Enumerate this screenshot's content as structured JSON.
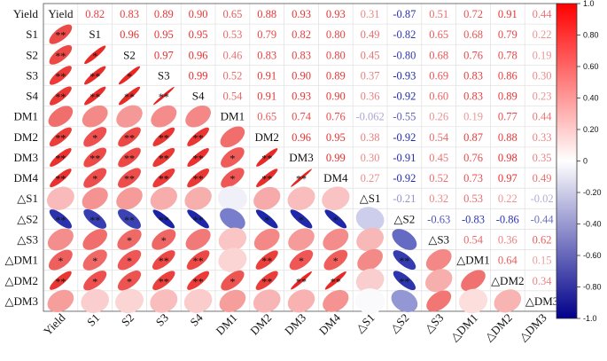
{
  "chart_data": {
    "type": "heatmap",
    "title": "",
    "variables": [
      "Yield",
      "S1",
      "S2",
      "S3",
      "S4",
      "DM1",
      "DM2",
      "DM3",
      "DM4",
      "△S1",
      "△S2",
      "△S3",
      "△DM1",
      "△DM2",
      "△DM3"
    ],
    "matrix": [
      [
        1,
        0.82,
        0.83,
        0.89,
        0.9,
        0.65,
        0.88,
        0.93,
        0.93,
        0.31,
        -0.87,
        0.51,
        0.72,
        0.91,
        0.44
      ],
      [
        0.82,
        1,
        0.96,
        0.95,
        0.95,
        0.53,
        0.79,
        0.82,
        0.8,
        0.49,
        -0.82,
        0.65,
        0.68,
        0.79,
        0.22
      ],
      [
        0.83,
        0.96,
        1,
        0.97,
        0.96,
        0.46,
        0.83,
        0.83,
        0.8,
        0.45,
        -0.8,
        0.68,
        0.76,
        0.78,
        0.19
      ],
      [
        0.89,
        0.95,
        0.97,
        1,
        0.99,
        0.52,
        0.91,
        0.9,
        0.89,
        0.37,
        -0.93,
        0.69,
        0.83,
        0.86,
        0.3
      ],
      [
        0.9,
        0.95,
        0.96,
        0.99,
        1,
        0.54,
        0.91,
        0.93,
        0.9,
        0.36,
        -0.92,
        0.6,
        0.83,
        0.89,
        0.23
      ],
      [
        0.65,
        0.53,
        0.46,
        0.52,
        0.54,
        1,
        0.65,
        0.74,
        0.76,
        -0.062,
        -0.55,
        0.26,
        0.19,
        0.77,
        0.44
      ],
      [
        0.88,
        0.79,
        0.83,
        0.91,
        0.91,
        0.65,
        1,
        0.96,
        0.95,
        0.38,
        -0.92,
        0.54,
        0.87,
        0.88,
        0.33
      ],
      [
        0.93,
        0.82,
        0.83,
        0.9,
        0.93,
        0.74,
        0.96,
        1,
        0.99,
        0.3,
        -0.91,
        0.45,
        0.76,
        0.98,
        0.35
      ],
      [
        0.93,
        0.8,
        0.8,
        0.89,
        0.9,
        0.76,
        0.95,
        0.99,
        1,
        0.27,
        -0.92,
        0.52,
        0.73,
        0.97,
        0.49
      ],
      [
        0.31,
        0.49,
        0.45,
        0.37,
        0.36,
        -0.062,
        0.38,
        0.3,
        0.27,
        1,
        -0.21,
        0.32,
        0.53,
        0.22,
        -0.02
      ],
      [
        -0.87,
        -0.82,
        -0.8,
        -0.93,
        -0.92,
        -0.55,
        -0.92,
        -0.91,
        -0.92,
        -0.21,
        1,
        -0.63,
        -0.83,
        -0.86,
        -0.44
      ],
      [
        0.51,
        0.65,
        0.68,
        0.69,
        0.6,
        0.26,
        0.54,
        0.45,
        0.52,
        0.32,
        -0.63,
        1,
        0.54,
        0.36,
        0.62
      ],
      [
        0.72,
        0.68,
        0.76,
        0.83,
        0.83,
        0.19,
        0.87,
        0.76,
        0.73,
        0.53,
        -0.83,
        0.54,
        1,
        0.64,
        0.15
      ],
      [
        0.91,
        0.79,
        0.78,
        0.86,
        0.89,
        0.77,
        0.88,
        0.98,
        0.97,
        0.22,
        -0.86,
        0.36,
        0.64,
        1,
        0.34
      ],
      [
        0.44,
        0.22,
        0.19,
        0.3,
        0.23,
        0.44,
        0.33,
        0.35,
        0.49,
        -0.02,
        -0.44,
        0.62,
        0.15,
        0.34,
        1
      ]
    ],
    "upper_labels": [
      [
        "",
        "0.82",
        "0.83",
        "0.89",
        "0.90",
        "0.65",
        "0.88",
        "0.93",
        "0.93",
        "0.31",
        "-0.87",
        "0.51",
        "0.72",
        "0.91",
        "0.44"
      ],
      [
        "",
        "",
        "0.96",
        "0.95",
        "0.95",
        "0.53",
        "0.79",
        "0.82",
        "0.80",
        "0.49",
        "-0.82",
        "0.65",
        "0.68",
        "0.79",
        "0.22"
      ],
      [
        "",
        "",
        "",
        "0.97",
        "0.96",
        "0.46",
        "0.83",
        "0.83",
        "0.80",
        "0.45",
        "-0.80",
        "0.68",
        "0.76",
        "0.78",
        "0.19"
      ],
      [
        "",
        "",
        "",
        "",
        "0.99",
        "0.52",
        "0.91",
        "0.90",
        "0.89",
        "0.37",
        "-0.93",
        "0.69",
        "0.83",
        "0.86",
        "0.30"
      ],
      [
        "",
        "",
        "",
        "",
        "",
        "0.54",
        "0.91",
        "0.93",
        "0.90",
        "0.36",
        "-0.92",
        "0.60",
        "0.83",
        "0.89",
        "0.23"
      ],
      [
        "",
        "",
        "",
        "",
        "",
        "",
        "0.65",
        "0.74",
        "0.76",
        "-0.062",
        "-0.55",
        "0.26",
        "0.19",
        "0.77",
        "0.44"
      ],
      [
        "",
        "",
        "",
        "",
        "",
        "",
        "",
        "0.96",
        "0.95",
        "0.38",
        "-0.92",
        "0.54",
        "0.87",
        "0.88",
        "0.33"
      ],
      [
        "",
        "",
        "",
        "",
        "",
        "",
        "",
        "",
        "0.99",
        "0.30",
        "-0.91",
        "0.45",
        "0.76",
        "0.98",
        "0.35"
      ],
      [
        "",
        "",
        "",
        "",
        "",
        "",
        "",
        "",
        "",
        "0.27",
        "-0.92",
        "0.52",
        "0.73",
        "0.97",
        "0.49"
      ],
      [
        "",
        "",
        "",
        "",
        "",
        "",
        "",
        "",
        "",
        "",
        "-0.21",
        "0.32",
        "0.53",
        "0.22",
        "-0.02"
      ],
      [
        "",
        "",
        "",
        "",
        "",
        "",
        "",
        "",
        "",
        "",
        "",
        "-0.63",
        "-0.83",
        "-0.86",
        "-0.44"
      ],
      [
        "",
        "",
        "",
        "",
        "",
        "",
        "",
        "",
        "",
        "",
        "",
        "",
        "0.54",
        "0.36",
        "0.62"
      ],
      [
        "",
        "",
        "",
        "",
        "",
        "",
        "",
        "",
        "",
        "",
        "",
        "",
        "",
        "0.64",
        "0.15"
      ],
      [
        "",
        "",
        "",
        "",
        "",
        "",
        "",
        "",
        "",
        "",
        "",
        "",
        "",
        "",
        "0.34"
      ],
      [
        "",
        "",
        "",
        "",
        "",
        "",
        "",
        "",
        "",
        "",
        "",
        "",
        "",
        "",
        ""
      ]
    ],
    "lower_significance": [
      [
        "",
        "",
        "",
        "",
        "",
        "",
        "",
        "",
        "",
        "",
        "",
        "",
        "",
        "",
        ""
      ],
      [
        "**",
        "",
        "",
        "",
        "",
        "",
        "",
        "",
        "",
        "",
        "",
        "",
        "",
        "",
        ""
      ],
      [
        "**",
        "*",
        "",
        "",
        "",
        "",
        "",
        "",
        "",
        "",
        "",
        "",
        "",
        "",
        ""
      ],
      [
        "**",
        "**",
        "*",
        "",
        "",
        "",
        "",
        "",
        "",
        "",
        "",
        "",
        "",
        "",
        ""
      ],
      [
        "**",
        "**",
        "**",
        "**",
        "",
        "",
        "",
        "",
        "",
        "",
        "",
        "",
        "",
        "",
        ""
      ],
      [
        "",
        "",
        "",
        "",
        "",
        "",
        "",
        "",
        "",
        "",
        "",
        "",
        "",
        "",
        ""
      ],
      [
        "**",
        "*",
        "**",
        "**",
        "**",
        "",
        "",
        "",
        "",
        "",
        "",
        "",
        "",
        "",
        ""
      ],
      [
        "**",
        "**",
        "**",
        "**",
        "**",
        "*",
        "**",
        "",
        "",
        "",
        "",
        "",
        "",
        "",
        ""
      ],
      [
        "**",
        "*",
        "**",
        "**",
        "**",
        "*",
        "**",
        "**",
        "",
        "",
        "",
        "",
        "",
        "",
        ""
      ],
      [
        "",
        "",
        "",
        "",
        "",
        "",
        "",
        "",
        "",
        "",
        "",
        "",
        "",
        "",
        ""
      ],
      [
        "**",
        "**",
        "**",
        "**",
        "**",
        "",
        "*",
        "*",
        "*",
        "",
        "",
        "",
        "",
        "",
        ""
      ],
      [
        "",
        "",
        "*",
        "*",
        "",
        "",
        "",
        "",
        "",
        "",
        "",
        "",
        "",
        "",
        ""
      ],
      [
        "*",
        "*",
        "*",
        "**",
        "**",
        "",
        "**",
        "*",
        "*",
        "",
        "**",
        "",
        "",
        "",
        ""
      ],
      [
        "**",
        "*",
        "*",
        "**",
        "**",
        "*",
        "**",
        "**",
        "**",
        "",
        "**",
        "",
        "",
        "",
        ""
      ],
      [
        "",
        "",
        "",
        "",
        "",
        "",
        "",
        "",
        "",
        "",
        "",
        "",
        "",
        "",
        ""
      ]
    ],
    "colorbar": {
      "min": -1.0,
      "max": 1.0,
      "ticks": [
        "1.0",
        "0.80",
        "0.60",
        "0.40",
        "0.20",
        "0",
        "-0.20",
        "-0.40",
        "-0.60",
        "-0.80",
        "-1.0"
      ]
    },
    "colors": {
      "positive": "#e8221f",
      "negative": "#0a14a0",
      "neutral": "#ffffff",
      "grid": "#e3e3e3"
    }
  }
}
